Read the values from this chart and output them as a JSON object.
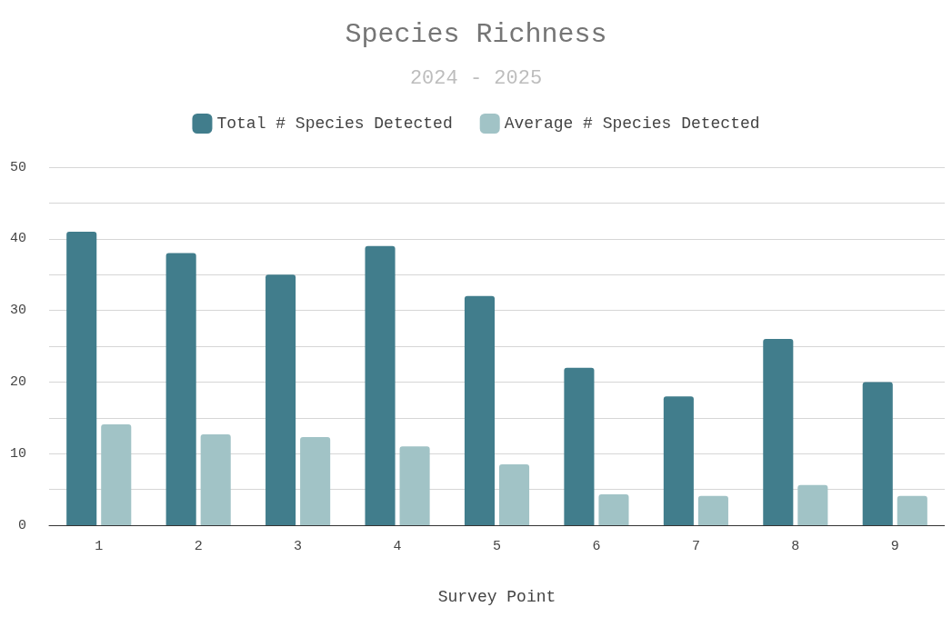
{
  "chart_data": {
    "type": "bar",
    "title": "Species Richness",
    "subtitle": "2024 - 2025",
    "xlabel": "Survey Point",
    "categories": [
      "1",
      "2",
      "3",
      "4",
      "5",
      "6",
      "7",
      "8",
      "9"
    ],
    "series": [
      {
        "name": "Total # Species Detected",
        "color": "#417d8c",
        "values": [
          41,
          38,
          35,
          39,
          32,
          22,
          18,
          26,
          20
        ]
      },
      {
        "name": "Average # Species Detected",
        "color": "#a1c3c6",
        "values": [
          14.1,
          12.7,
          12.3,
          11.0,
          8.5,
          4.3,
          4.1,
          5.6,
          4.1
        ]
      }
    ],
    "ylim": [
      0,
      50
    ],
    "yticks": [
      0,
      {
        "value": 5,
        "label": null
      },
      10,
      {
        "value": 15,
        "label": null
      },
      20,
      {
        "value": 25,
        "label": null
      },
      30,
      {
        "value": 35,
        "label": null
      },
      40,
      {
        "value": 45,
        "label": null
      },
      50
    ],
    "grid": "y",
    "legend": "top"
  }
}
